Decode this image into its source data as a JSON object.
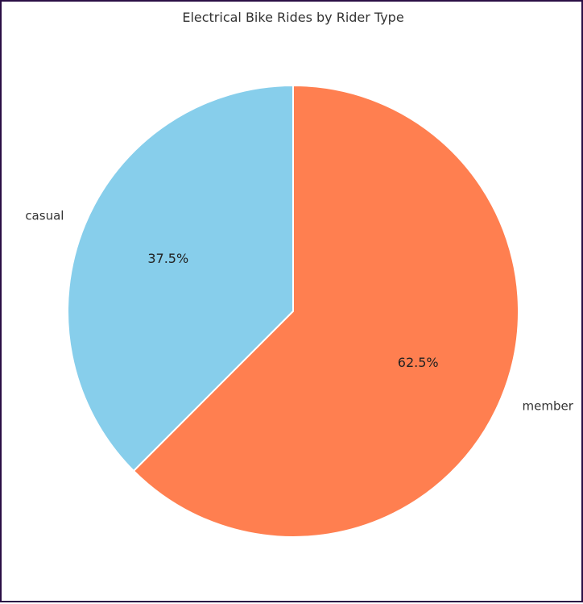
{
  "chart_data": {
    "type": "pie",
    "title": "Electrical Bike Rides by Rider Type",
    "categories": [
      "casual",
      "member"
    ],
    "values": [
      37.5,
      62.5
    ],
    "value_labels": [
      "37.5%",
      "62.5%"
    ],
    "colors": [
      "#87CEEB",
      "#FF7F50"
    ],
    "start_angle_deg": 90,
    "direction": "counterclockwise",
    "legend": "none"
  }
}
